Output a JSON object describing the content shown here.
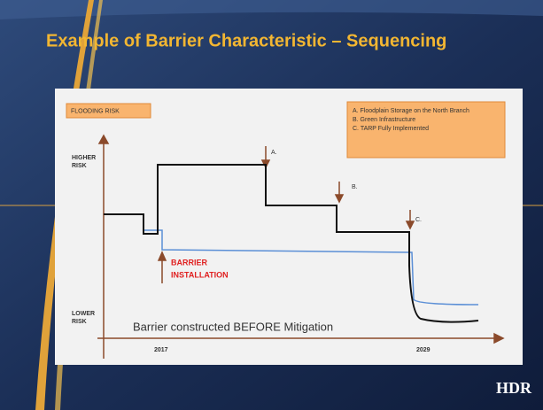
{
  "header": {
    "title": "Example of Barrier Characteristic – Sequencing"
  },
  "diagram": {
    "panel_label": "FLOODING RISK",
    "legend": [
      "A. Floodplain Storage on the North Branch",
      "B. Green Infrastructure",
      "C. TARP Fully Implemented"
    ],
    "y_axis": {
      "high": [
        "HIGHER",
        "RISK"
      ],
      "low": [
        "LOWER",
        "RISK"
      ]
    },
    "x_axis": {
      "start": "2017",
      "end": "2029"
    },
    "markers": [
      "A.",
      "B.",
      "C."
    ],
    "barrier_label": [
      "BARRIER",
      "INSTALLATION"
    ],
    "caption": "Barrier constructed BEFORE  Mitigation"
  },
  "footer": {
    "logo": "HDR"
  }
}
